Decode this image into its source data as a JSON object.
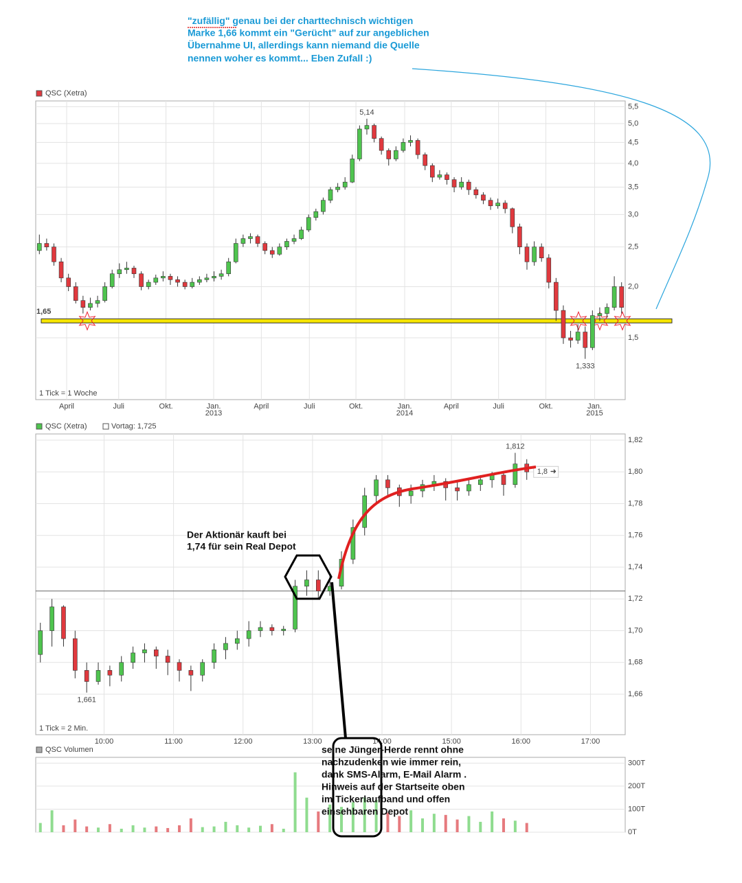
{
  "annotations": {
    "top_word": "\"zufällig\"",
    "top": [
      " genau bei der charttechnisch wichtigen",
      "Marke 1,66 kommt ein \"Gerücht\" auf zur angeblichen",
      "Übernahme UI, allerdings kann niemand die Quelle",
      "nennen woher es kommt... Eben Zufall :)"
    ],
    "buyer": [
      "Der Aktionär kauft bei",
      "1,74 für sein Real Depot"
    ],
    "herd": [
      "seine Jünger-Herde rennt ohne",
      "nachzudenken wie immer rein,",
      "dank SMS-Alarm, E-Mail Alarm .",
      "Hinweis auf der Startseite oben",
      "im Tickerlaufband und offen",
      "einsehbaren Depot"
    ]
  },
  "chart_data": [
    {
      "type": "candlestick",
      "legend": "QSC (Xetra)",
      "note": "1 Tick = 1 Woche",
      "log": true,
      "grid": true,
      "up_color": "#4fc44f",
      "down_color": "#e0393e",
      "legend_color": "#e0393e",
      "ylim": [
        1.06,
        5.68
      ],
      "yticks": [
        {
          "value": 1.5,
          "label": "1,5"
        },
        {
          "value": 2.0,
          "label": "2,0"
        },
        {
          "value": 2.5,
          "label": "2,5"
        },
        {
          "value": 3.0,
          "label": "3,0"
        },
        {
          "value": 3.5,
          "label": "3,5"
        },
        {
          "value": 4.0,
          "label": "4,0"
        },
        {
          "value": 4.5,
          "label": "4,5"
        },
        {
          "value": 5.0,
          "label": "5,0"
        },
        {
          "value": 5.5,
          "label": "5,5"
        }
      ],
      "xlim": [
        0,
        81
      ],
      "xticks": [
        {
          "value": 4.25,
          "label": "April"
        },
        {
          "value": 11.4,
          "label": "Juli"
        },
        {
          "value": 17.9,
          "label": "Okt."
        },
        {
          "value": 24.45,
          "label": "Jan."
        },
        {
          "value": 31.0,
          "label": "April"
        },
        {
          "value": 37.6,
          "label": "Juli"
        },
        {
          "value": 44.0,
          "label": "Okt."
        },
        {
          "value": 50.7,
          "label": "Jan."
        },
        {
          "value": 57.1,
          "label": "April"
        },
        {
          "value": 63.6,
          "label": "Juli"
        },
        {
          "value": 70.1,
          "label": "Okt."
        },
        {
          "value": 76.8,
          "label": "Jan."
        }
      ],
      "year_labels": [
        {
          "value": 24.45,
          "label": "2013"
        },
        {
          "value": 50.7,
          "label": "2014"
        },
        {
          "value": 76.8,
          "label": "2015"
        }
      ],
      "max_label": "5,14",
      "min_label": "1,333",
      "level": {
        "value": 1.65,
        "label": "1,65",
        "color": "#f5e400"
      },
      "candles": [
        [
          2.45,
          2.68,
          2.4,
          2.55
        ],
        [
          2.55,
          2.62,
          2.45,
          2.5
        ],
        [
          2.5,
          2.55,
          2.25,
          2.3
        ],
        [
          2.3,
          2.35,
          2.05,
          2.1
        ],
        [
          2.1,
          2.15,
          1.95,
          2.0
        ],
        [
          2.0,
          2.05,
          1.82,
          1.85
        ],
        [
          1.85,
          1.9,
          1.72,
          1.78
        ],
        [
          1.78,
          1.88,
          1.75,
          1.82
        ],
        [
          1.82,
          1.9,
          1.78,
          1.85
        ],
        [
          1.85,
          2.05,
          1.83,
          2.0
        ],
        [
          2.0,
          2.2,
          1.98,
          2.15
        ],
        [
          2.15,
          2.28,
          2.1,
          2.2
        ],
        [
          2.2,
          2.3,
          2.15,
          2.22
        ],
        [
          2.22,
          2.25,
          2.1,
          2.15
        ],
        [
          2.15,
          2.18,
          1.96,
          2.0
        ],
        [
          2.0,
          2.08,
          1.97,
          2.05
        ],
        [
          2.05,
          2.14,
          2.02,
          2.1
        ],
        [
          2.1,
          2.18,
          2.06,
          2.12
        ],
        [
          2.12,
          2.15,
          2.02,
          2.08
        ],
        [
          2.08,
          2.12,
          2.0,
          2.05
        ],
        [
          2.05,
          2.08,
          1.97,
          2.0
        ],
        [
          2.0,
          2.1,
          1.98,
          2.05
        ],
        [
          2.05,
          2.12,
          2.02,
          2.08
        ],
        [
          2.08,
          2.15,
          2.05,
          2.1
        ],
        [
          2.1,
          2.18,
          2.06,
          2.12
        ],
        [
          2.12,
          2.2,
          2.08,
          2.15
        ],
        [
          2.15,
          2.35,
          2.12,
          2.3
        ],
        [
          2.3,
          2.62,
          2.28,
          2.55
        ],
        [
          2.55,
          2.68,
          2.5,
          2.62
        ],
        [
          2.62,
          2.7,
          2.55,
          2.65
        ],
        [
          2.65,
          2.68,
          2.5,
          2.55
        ],
        [
          2.55,
          2.58,
          2.4,
          2.45
        ],
        [
          2.45,
          2.5,
          2.35,
          2.4
        ],
        [
          2.4,
          2.55,
          2.38,
          2.5
        ],
        [
          2.5,
          2.62,
          2.46,
          2.58
        ],
        [
          2.58,
          2.68,
          2.54,
          2.62
        ],
        [
          2.62,
          2.8,
          2.6,
          2.75
        ],
        [
          2.75,
          3.0,
          2.72,
          2.95
        ],
        [
          2.95,
          3.1,
          2.9,
          3.05
        ],
        [
          3.05,
          3.3,
          3.0,
          3.25
        ],
        [
          3.25,
          3.5,
          3.2,
          3.45
        ],
        [
          3.45,
          3.58,
          3.4,
          3.5
        ],
        [
          3.5,
          3.7,
          3.45,
          3.6
        ],
        [
          3.6,
          4.2,
          3.58,
          4.1
        ],
        [
          4.1,
          4.95,
          4.05,
          4.85
        ],
        [
          4.85,
          5.14,
          4.7,
          4.95
        ],
        [
          4.95,
          5.0,
          4.5,
          4.6
        ],
        [
          4.6,
          4.65,
          4.2,
          4.3
        ],
        [
          4.3,
          4.35,
          3.95,
          4.1
        ],
        [
          4.1,
          4.4,
          4.05,
          4.3
        ],
        [
          4.3,
          4.6,
          4.25,
          4.5
        ],
        [
          4.5,
          4.68,
          4.4,
          4.55
        ],
        [
          4.55,
          4.6,
          4.1,
          4.2
        ],
        [
          4.2,
          4.25,
          3.85,
          3.95
        ],
        [
          3.95,
          4.0,
          3.6,
          3.7
        ],
        [
          3.7,
          3.85,
          3.65,
          3.75
        ],
        [
          3.75,
          3.8,
          3.55,
          3.65
        ],
        [
          3.65,
          3.7,
          3.4,
          3.5
        ],
        [
          3.5,
          3.7,
          3.45,
          3.6
        ],
        [
          3.6,
          3.65,
          3.35,
          3.45
        ],
        [
          3.45,
          3.5,
          3.28,
          3.35
        ],
        [
          3.35,
          3.4,
          3.18,
          3.25
        ],
        [
          3.25,
          3.3,
          3.08,
          3.15
        ],
        [
          3.15,
          3.28,
          3.1,
          3.2
        ],
        [
          3.2,
          3.25,
          3.02,
          3.1
        ],
        [
          3.1,
          3.12,
          2.7,
          2.8
        ],
        [
          2.8,
          2.85,
          2.4,
          2.5
        ],
        [
          2.5,
          2.55,
          2.2,
          2.3
        ],
        [
          2.3,
          2.58,
          2.25,
          2.5
        ],
        [
          2.5,
          2.55,
          2.3,
          2.35
        ],
        [
          2.35,
          2.4,
          1.98,
          2.05
        ],
        [
          2.05,
          2.1,
          1.65,
          1.75
        ],
        [
          1.75,
          1.8,
          1.45,
          1.5
        ],
        [
          1.5,
          1.56,
          1.42,
          1.48
        ],
        [
          1.48,
          1.62,
          1.45,
          1.55
        ],
        [
          1.55,
          1.6,
          1.333,
          1.42
        ],
        [
          1.42,
          1.75,
          1.4,
          1.7
        ],
        [
          1.7,
          1.78,
          1.65,
          1.72
        ],
        [
          1.72,
          1.82,
          1.68,
          1.78
        ],
        [
          1.78,
          2.12,
          1.75,
          2.0
        ],
        [
          2.0,
          2.05,
          1.72,
          1.78
        ]
      ]
    },
    {
      "type": "candlestick",
      "legend": "QSC (Xetra)",
      "note": "1 Tick = 2 Min.",
      "log": false,
      "grid": true,
      "up_color": "#4fc44f",
      "down_color": "#e0393e",
      "legend_color": "#4fc44f",
      "ylim": [
        1.6345,
        1.8239
      ],
      "yticks": [
        {
          "value": 1.66,
          "label": "1,66"
        },
        {
          "value": 1.68,
          "label": "1,68"
        },
        {
          "value": 1.7,
          "label": "1,70"
        },
        {
          "value": 1.72,
          "label": "1,72"
        },
        {
          "value": 1.74,
          "label": "1,74"
        },
        {
          "value": 1.76,
          "label": "1,76"
        },
        {
          "value": 1.78,
          "label": "1,78"
        },
        {
          "value": 1.8,
          "label": "1,80"
        },
        {
          "value": 1.82,
          "label": "1,82"
        }
      ],
      "xlim": [
        541,
        1050
      ],
      "xticks": [
        {
          "value": 600,
          "label": "10:00"
        },
        {
          "value": 660,
          "label": "11:00"
        },
        {
          "value": 720,
          "label": "12:00"
        },
        {
          "value": 780,
          "label": "13:00"
        },
        {
          "value": 840,
          "label": "14:00"
        },
        {
          "value": 900,
          "label": "15:00"
        },
        {
          "value": 960,
          "label": "16:00"
        },
        {
          "value": 1020,
          "label": "17:00"
        }
      ],
      "max_label": "1,812",
      "min_label": "1,661",
      "reference": {
        "value": 1.725,
        "label": "Vortag: 1,725"
      },
      "last": {
        "value": 1.8,
        "label": "1,8"
      },
      "x": [
        545,
        555,
        565,
        575,
        585,
        595,
        605,
        615,
        625,
        635,
        645,
        655,
        665,
        675,
        685,
        695,
        705,
        715,
        725,
        735,
        745,
        755,
        765,
        775,
        785,
        795,
        805,
        815,
        825,
        835,
        845,
        855,
        865,
        875,
        885,
        895,
        905,
        915,
        925,
        935,
        945,
        955,
        965
      ],
      "candles": [
        [
          1.685,
          1.705,
          1.68,
          1.7
        ],
        [
          1.7,
          1.72,
          1.69,
          1.715
        ],
        [
          1.715,
          1.716,
          1.69,
          1.695
        ],
        [
          1.695,
          1.7,
          1.67,
          1.675
        ],
        [
          1.675,
          1.68,
          1.661,
          1.668
        ],
        [
          1.668,
          1.68,
          1.666,
          1.675
        ],
        [
          1.675,
          1.678,
          1.665,
          1.672
        ],
        [
          1.672,
          1.684,
          1.668,
          1.68
        ],
        [
          1.68,
          1.69,
          1.676,
          1.686
        ],
        [
          1.686,
          1.692,
          1.68,
          1.688
        ],
        [
          1.688,
          1.69,
          1.676,
          1.684
        ],
        [
          1.684,
          1.688,
          1.672,
          1.68
        ],
        [
          1.68,
          1.682,
          1.668,
          1.675
        ],
        [
          1.675,
          1.678,
          1.662,
          1.672
        ],
        [
          1.672,
          1.682,
          1.668,
          1.68
        ],
        [
          1.68,
          1.692,
          1.676,
          1.688
        ],
        [
          1.688,
          1.696,
          1.682,
          1.692
        ],
        [
          1.692,
          1.7,
          1.688,
          1.695
        ],
        [
          1.695,
          1.706,
          1.69,
          1.7
        ],
        [
          1.7,
          1.706,
          1.696,
          1.702
        ],
        [
          1.702,
          1.704,
          1.697,
          1.7
        ],
        [
          1.7,
          1.703,
          1.697,
          1.701
        ],
        [
          1.701,
          1.732,
          1.699,
          1.728
        ],
        [
          1.728,
          1.738,
          1.722,
          1.732
        ],
        [
          1.732,
          1.738,
          1.72,
          1.725
        ],
        [
          1.725,
          1.735,
          1.722,
          1.728
        ],
        [
          1.728,
          1.75,
          1.726,
          1.745
        ],
        [
          1.745,
          1.77,
          1.742,
          1.765
        ],
        [
          1.765,
          1.79,
          1.76,
          1.785
        ],
        [
          1.785,
          1.798,
          1.78,
          1.795
        ],
        [
          1.795,
          1.798,
          1.785,
          1.79
        ],
        [
          1.79,
          1.792,
          1.778,
          1.785
        ],
        [
          1.785,
          1.792,
          1.78,
          1.788
        ],
        [
          1.788,
          1.795,
          1.784,
          1.792
        ],
        [
          1.792,
          1.798,
          1.788,
          1.794
        ],
        [
          1.794,
          1.796,
          1.782,
          1.79
        ],
        [
          1.79,
          1.794,
          1.782,
          1.788
        ],
        [
          1.788,
          1.796,
          1.785,
          1.792
        ],
        [
          1.792,
          1.798,
          1.788,
          1.795
        ],
        [
          1.795,
          1.8,
          1.79,
          1.798
        ],
        [
          1.798,
          1.8,
          1.785,
          1.792
        ],
        [
          1.792,
          1.812,
          1.79,
          1.805
        ],
        [
          1.805,
          1.808,
          1.795,
          1.8
        ]
      ]
    },
    {
      "type": "bar",
      "legend": "QSC Volumen",
      "legend_color": "#aaaaaa",
      "grid": true,
      "up_color": "#8fdc8f",
      "down_color": "#e67a7e",
      "ylim": [
        0,
        325
      ],
      "yticks": [
        {
          "value": 0,
          "label": "0T"
        },
        {
          "value": 100,
          "label": "100T"
        },
        {
          "value": 200,
          "label": "200T"
        },
        {
          "value": 300,
          "label": "300T"
        }
      ],
      "xlim": [
        541,
        1050
      ],
      "x": [
        545,
        555,
        565,
        575,
        585,
        595,
        605,
        615,
        625,
        635,
        645,
        655,
        665,
        675,
        685,
        695,
        705,
        715,
        725,
        735,
        745,
        755,
        765,
        775,
        785,
        795,
        805,
        815,
        825,
        835,
        845,
        855,
        865,
        875,
        885,
        895,
        905,
        915,
        925,
        935,
        945,
        955,
        965
      ],
      "values": [
        40,
        95,
        30,
        55,
        25,
        20,
        35,
        15,
        30,
        20,
        25,
        18,
        30,
        60,
        22,
        25,
        45,
        30,
        20,
        28,
        35,
        15,
        260,
        150,
        90,
        120,
        110,
        130,
        150,
        140,
        85,
        70,
        95,
        60,
        80,
        75,
        55,
        70,
        45,
        90,
        60,
        50,
        40
      ]
    }
  ]
}
